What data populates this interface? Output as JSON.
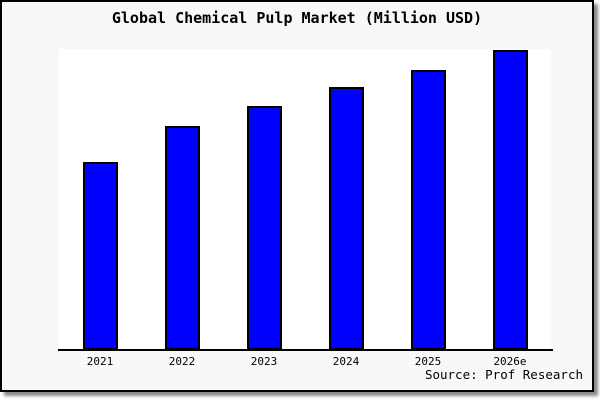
{
  "chart_data": {
    "type": "bar",
    "title": "Global Chemical Pulp Market (Million USD)",
    "categories": [
      "2021",
      "2022",
      "2023",
      "2024",
      "2025",
      "2026e"
    ],
    "values": [
      62.7,
      74.7,
      81.3,
      87.7,
      93.3,
      100
    ],
    "values_are": "relative-height-percent-of-tallest-bar (no numeric y-axis shown in figure)",
    "xlabel": "",
    "ylabel": "",
    "ylim": [
      0,
      100
    ],
    "grid": false,
    "legend": false,
    "y_ticks_shown": false,
    "bar_color": "#0000ff",
    "bar_border_color": "#000000"
  },
  "colors": {
    "figure_background": "#f8f8f8",
    "plot_background": "#ffffff",
    "frame_border": "#000000",
    "shadow": "#8a8a8a",
    "text": "#000000"
  },
  "footer": {
    "source_label": "Source: Prof Research"
  }
}
